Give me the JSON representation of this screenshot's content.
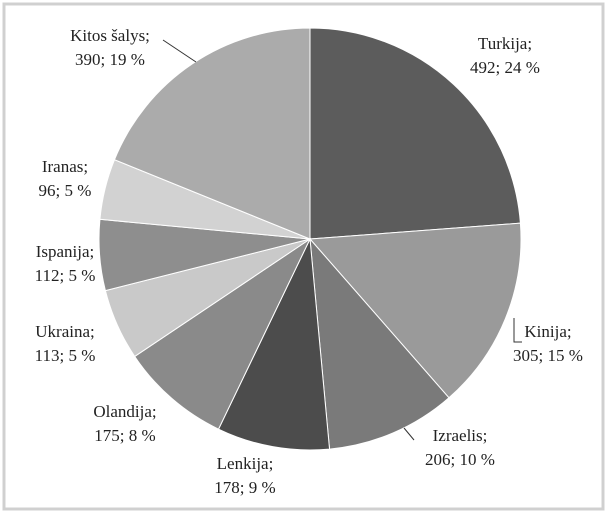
{
  "chart_data": {
    "type": "pie",
    "categories": [
      "Turkija;",
      "Kinija;",
      "Izraelis;",
      "Lenkija;",
      "Olandija;",
      "Ukraina;",
      "Ispanija;",
      "Iranas;",
      "Kitos šalys;"
    ],
    "values": [
      492,
      305,
      206,
      178,
      175,
      113,
      112,
      96,
      390
    ],
    "value_labels": [
      "492; 24 %",
      "305; 15 %",
      "206; 10 %",
      "178; 9 %",
      "175; 8 %",
      "113; 5 %",
      "112; 5 %",
      "96; 5 %",
      "390; 19 %"
    ],
    "colors": [
      "#5c5c5c",
      "#9a9a9a",
      "#7a7a7a",
      "#4c4c4c",
      "#8a8a8a",
      "#c9c9c9",
      "#8e8e8e",
      "#d2d2d2",
      "#ababab"
    ]
  }
}
